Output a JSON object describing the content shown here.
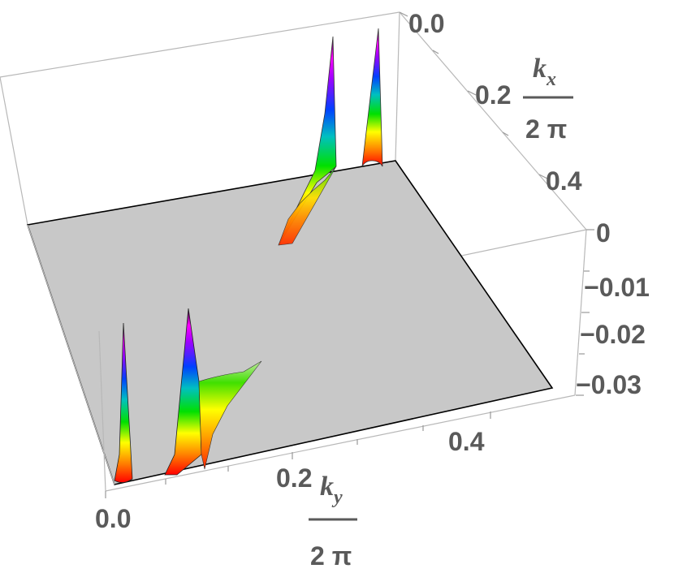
{
  "chart_data": {
    "type": "surface3d",
    "axes": {
      "x": {
        "label_num": "k_x",
        "label_sym": "x",
        "label_den": "2 π",
        "ticks": [
          0.0,
          0.2,
          0.4
        ],
        "tick_labels": [
          "0.0",
          "0.2",
          "0.4"
        ],
        "range": [
          0.0,
          0.5
        ]
      },
      "y": {
        "label_num": "k_y",
        "label_sym": "y",
        "label_den": "2 π",
        "ticks": [
          0.0,
          0.2,
          0.4
        ],
        "tick_labels": [
          "0.0",
          "0.2",
          "0.4"
        ],
        "range": [
          0.0,
          0.5
        ]
      },
      "z": {
        "ticks": [
          0,
          -0.01,
          -0.02,
          -0.03
        ],
        "tick_labels": [
          "0",
          "−0.01",
          "−0.02",
          "−0.03"
        ],
        "range": [
          -0.034,
          0.0
        ]
      }
    },
    "baseline_z": 0.0,
    "baseline_color": "#c8c8c8",
    "colormap": [
      "#ff0000",
      "#ff8000",
      "#ffff00",
      "#00e000",
      "#00c0c0",
      "#0040ff",
      "#a000ff",
      "#ff00ff",
      "#200020"
    ],
    "features": [
      {
        "kind": "spike",
        "kx": 0.02,
        "ky": 0.02,
        "depth": -0.03
      },
      {
        "kind": "spike",
        "kx": 0.09,
        "ky": 0.03,
        "depth": -0.031
      },
      {
        "kind": "sheet",
        "kx_from": 0.09,
        "kx_to": 0.21,
        "ky_from": 0.03,
        "ky_to": 0.08,
        "depth_from": -0.018,
        "depth_to": -0.002
      },
      {
        "kind": "spike",
        "kx": 0.44,
        "ky": 0.26,
        "depth": -0.034
      },
      {
        "kind": "spike",
        "kx": 0.48,
        "ky": 0.33,
        "depth": -0.033
      },
      {
        "kind": "sheet",
        "kx_from": 0.33,
        "kx_to": 0.44,
        "ky_from": 0.22,
        "ky_to": 0.26,
        "depth_from": -0.002,
        "depth_to": -0.014
      }
    ]
  }
}
